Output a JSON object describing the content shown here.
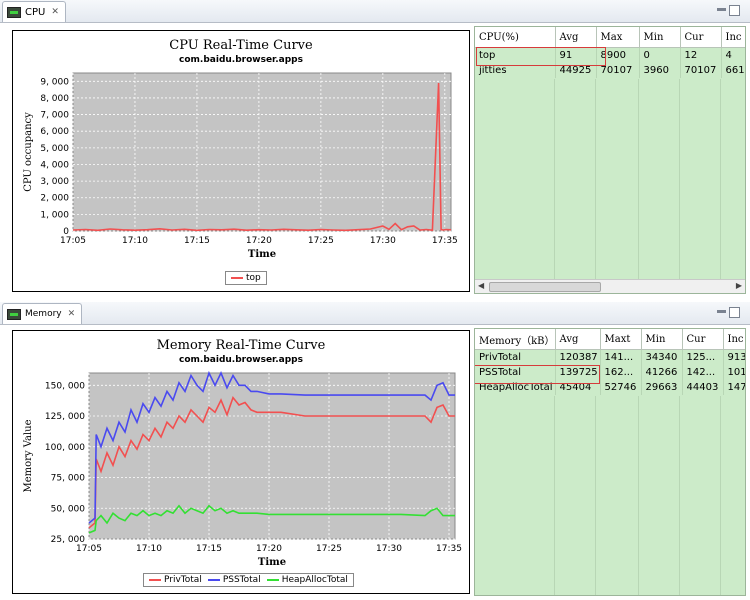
{
  "cpu_panel": {
    "tab_label": "CPU",
    "table": {
      "columns": [
        "CPU(%)",
        "Avg",
        "Max",
        "Min",
        "Cur",
        "Inc"
      ],
      "rows": [
        [
          "top",
          "91",
          "8900",
          "0",
          "12",
          "4"
        ],
        [
          "jitties",
          "44925",
          "70107",
          "3960",
          "70107",
          "661"
        ]
      ]
    }
  },
  "mem_panel": {
    "tab_label": "Memory",
    "table": {
      "columns": [
        "Memory（kB）",
        "Avg",
        "Maxt",
        "Min",
        "Cur",
        "Inc"
      ],
      "rows": [
        [
          "PrivTotal",
          "120387",
          "141...",
          "34340",
          "125...",
          "913"
        ],
        [
          "PSSTotal",
          "139725",
          "162...",
          "41266",
          "142...",
          "101"
        ],
        [
          "HeapAllocTotal",
          "45404",
          "52746",
          "29663",
          "44403",
          "147"
        ]
      ]
    }
  },
  "colors": {
    "priv": "#f25050",
    "pss": "#4a4af0",
    "heap": "#33e033",
    "grid_bg": "#c4c4c4",
    "table_bg": "#ccebc9"
  },
  "chart_data": [
    {
      "type": "line",
      "title": "CPU Real-Time Curve",
      "subtitle": "com.baidu.browser.apps",
      "xlabel": "Time",
      "ylabel": "CPU occupancy",
      "ylim": [
        0,
        9500
      ],
      "yticks": [
        0,
        1000,
        2000,
        3000,
        4000,
        5000,
        6000,
        7000,
        8000,
        9000
      ],
      "ytick_labels": [
        "0",
        "1, 000",
        "2, 000",
        "3, 000",
        "4, 000",
        "5, 000",
        "6, 000",
        "7, 000",
        "8, 000",
        "9, 000"
      ],
      "xlim": [
        0,
        30.5
      ],
      "xticks": [
        0,
        5,
        10,
        15,
        20,
        25,
        30
      ],
      "xtick_labels": [
        "17:05",
        "17:10",
        "17:15",
        "17:20",
        "17:25",
        "17:30",
        "17:35"
      ],
      "legend": [
        "top"
      ],
      "series": [
        {
          "name": "top",
          "color": "#f25050",
          "x": [
            0,
            1,
            2,
            3,
            4,
            5,
            6,
            7,
            8,
            9,
            10,
            11,
            12,
            13,
            14,
            15,
            16,
            17,
            18,
            19,
            20,
            21,
            22,
            23,
            24,
            25,
            25.5,
            26,
            26.5,
            27,
            27.5,
            28,
            28.5,
            29,
            29.5,
            29.7,
            29.9,
            30.1,
            30.5
          ],
          "y": [
            60,
            90,
            40,
            120,
            70,
            50,
            80,
            130,
            60,
            100,
            40,
            90,
            70,
            110,
            50,
            80,
            60,
            100,
            70,
            50,
            90,
            60,
            40,
            80,
            120,
            300,
            100,
            450,
            80,
            250,
            300,
            60,
            90,
            50,
            8900,
            80,
            60,
            90,
            70
          ]
        }
      ]
    },
    {
      "type": "line",
      "title": "Memory Real-Time Curve",
      "subtitle": "com.baidu.browser.apps",
      "xlabel": "Time",
      "ylabel": "Memory Value",
      "ylim": [
        25000,
        160000
      ],
      "yticks": [
        25000,
        50000,
        75000,
        100000,
        125000,
        150000
      ],
      "ytick_labels": [
        "25, 000",
        "50, 000",
        "75, 000",
        "100, 000",
        "125, 000",
        "150, 000"
      ],
      "xlim": [
        0,
        30.5
      ],
      "xticks": [
        0,
        5,
        10,
        15,
        20,
        25,
        30
      ],
      "xtick_labels": [
        "17:05",
        "17:10",
        "17:15",
        "17:20",
        "17:25",
        "17:30",
        "17:35"
      ],
      "legend": [
        "PrivTotal",
        "PSSTotal",
        "HeapAllocTotal"
      ],
      "series": [
        {
          "name": "PrivTotal",
          "color": "#f25050",
          "x": [
            0,
            0.5,
            0.6,
            1,
            1.5,
            2,
            2.5,
            3,
            3.5,
            4,
            4.5,
            5,
            5.5,
            6,
            6.5,
            7,
            7.5,
            8,
            8.5,
            9,
            9.5,
            10,
            10.5,
            11,
            11.5,
            12,
            12.5,
            13,
            13.5,
            14,
            15,
            16,
            18,
            20,
            22,
            24,
            26,
            28,
            28.5,
            29,
            29.5,
            30,
            30.5
          ],
          "y": [
            34000,
            38000,
            90000,
            80000,
            95000,
            85000,
            100000,
            92000,
            105000,
            98000,
            110000,
            105000,
            115000,
            108000,
            120000,
            115000,
            125000,
            120000,
            130000,
            125000,
            120000,
            132000,
            128000,
            138000,
            126000,
            140000,
            134000,
            136000,
            130000,
            128000,
            128000,
            128000,
            125000,
            125000,
            125000,
            125000,
            125000,
            125000,
            120000,
            132000,
            134000,
            125000,
            125000
          ]
        },
        {
          "name": "PSSTotal",
          "color": "#4a4af0",
          "x": [
            0,
            0.5,
            0.6,
            1,
            1.5,
            2,
            2.5,
            3,
            3.5,
            4,
            4.5,
            5,
            5.5,
            6,
            6.5,
            7,
            7.5,
            8,
            8.5,
            9,
            9.5,
            10,
            10.5,
            11,
            11.5,
            12,
            12.5,
            13,
            13.5,
            14,
            15,
            16,
            18,
            20,
            22,
            24,
            26,
            28,
            28.5,
            29,
            29.5,
            30,
            30.5
          ],
          "y": [
            38000,
            42000,
            110000,
            100000,
            115000,
            105000,
            120000,
            112000,
            130000,
            120000,
            135000,
            128000,
            140000,
            133000,
            145000,
            138000,
            152000,
            145000,
            158000,
            150000,
            145000,
            160000,
            150000,
            162000,
            148000,
            158000,
            150000,
            150000,
            145000,
            145000,
            143000,
            143000,
            142000,
            142000,
            142000,
            142000,
            142000,
            142000,
            138000,
            150000,
            152000,
            142000,
            142000
          ]
        },
        {
          "name": "HeapAllocTotal",
          "color": "#33e033",
          "x": [
            0,
            0.5,
            0.6,
            1,
            1.5,
            2,
            2.5,
            3,
            3.5,
            4,
            4.5,
            5,
            5.5,
            6,
            6.5,
            7,
            7.5,
            8,
            8.5,
            9,
            9.5,
            10,
            10.5,
            11,
            11.5,
            12,
            12.5,
            13,
            14,
            15,
            16,
            18,
            20,
            22,
            24,
            26,
            28,
            28.5,
            29,
            29.5,
            30,
            30.5
          ],
          "y": [
            30000,
            32000,
            40000,
            44000,
            38000,
            46000,
            42000,
            40000,
            46000,
            44000,
            48000,
            44000,
            46000,
            44000,
            48000,
            46000,
            52000,
            46000,
            50000,
            48000,
            46000,
            52000,
            48000,
            50000,
            46000,
            48000,
            46000,
            46000,
            46000,
            45000,
            45000,
            45000,
            45000,
            45000,
            45000,
            45000,
            44000,
            48000,
            50000,
            44000,
            44000,
            44000
          ]
        }
      ]
    }
  ]
}
